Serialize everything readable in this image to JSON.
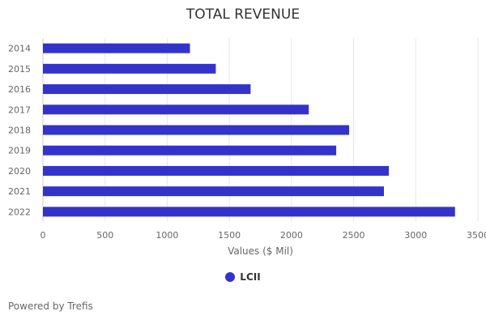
{
  "chart_data": {
    "type": "bar",
    "orientation": "horizontal",
    "title": "TOTAL REVENUE",
    "xlabel": "Values ($ Mil)",
    "ylabel": "",
    "categories": [
      "2014",
      "2015",
      "2016",
      "2017",
      "2018",
      "2019",
      "2020",
      "2021",
      "2022"
    ],
    "series": [
      {
        "name": "LCII",
        "color": "#3333cc",
        "values": [
          1183,
          1391,
          1671,
          2139,
          2464,
          2360,
          2783,
          2744,
          3316
        ]
      }
    ],
    "xlim": [
      0,
      3500
    ],
    "xticks": [
      0,
      500,
      1000,
      1500,
      2000,
      2500,
      3000,
      3500
    ],
    "grid": true,
    "legend_position": "bottom"
  },
  "footer": "Powered by Trefis"
}
